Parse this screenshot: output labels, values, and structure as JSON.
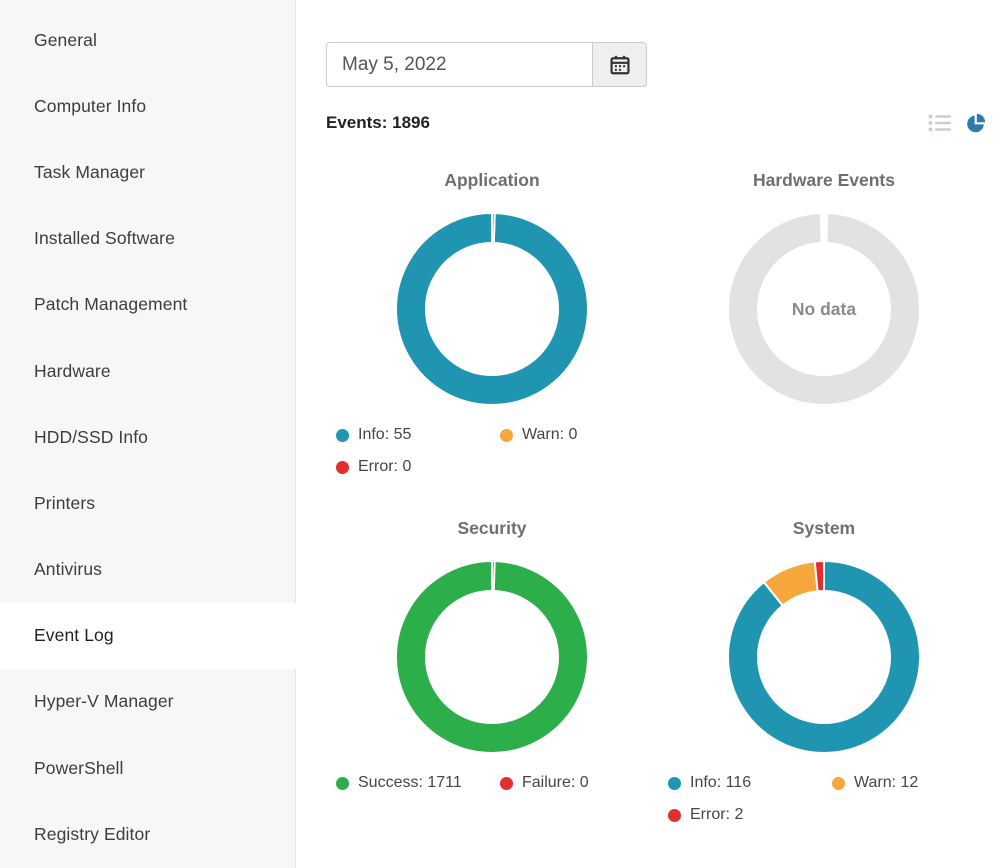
{
  "sidebar": {
    "items": [
      {
        "label": "General",
        "selected": false
      },
      {
        "label": "Computer Info",
        "selected": false
      },
      {
        "label": "Task Manager",
        "selected": false
      },
      {
        "label": "Installed Software",
        "selected": false
      },
      {
        "label": "Patch Management",
        "selected": false
      },
      {
        "label": "Hardware",
        "selected": false
      },
      {
        "label": "HDD/SSD Info",
        "selected": false
      },
      {
        "label": "Printers",
        "selected": false
      },
      {
        "label": "Antivirus",
        "selected": false
      },
      {
        "label": "Event Log",
        "selected": true
      },
      {
        "label": "Hyper-V Manager",
        "selected": false
      },
      {
        "label": "PowerShell",
        "selected": false
      },
      {
        "label": "Registry Editor",
        "selected": false
      }
    ]
  },
  "toolbar": {
    "date_value": "May 5, 2022",
    "events_label": "Events: 1896"
  },
  "icons": {
    "calendar": "calendar-icon",
    "list_view": "list-view-icon",
    "pie_view": "pie-view-icon"
  },
  "colors": {
    "info": "#2095b1",
    "warn": "#f6a73c",
    "error": "#e12f2f",
    "success": "#2cae4a",
    "no_data_ring": "#e2e2e2",
    "pie_view_icon": "#2b7bab",
    "list_view_icon": "#c9ced3",
    "sidebar_bg": "#f7f7f7"
  },
  "chart_data": [
    {
      "type": "pie",
      "title": "Application",
      "labels": [
        "Info",
        "Warn",
        "Error"
      ],
      "values": [
        55,
        0,
        0
      ],
      "colors": [
        "#2095b1",
        "#f6a73c",
        "#e12f2f"
      ],
      "legend": [
        {
          "label": "Info: 55",
          "color": "#2095b1"
        },
        {
          "label": "Warn: 0",
          "color": "#f6a73c"
        },
        {
          "label": "Error: 0",
          "color": "#e12f2f"
        }
      ]
    },
    {
      "type": "pie",
      "title": "Hardware Events",
      "labels": [],
      "values": [],
      "colors": [],
      "no_data_label": "No data",
      "legend": []
    },
    {
      "type": "pie",
      "title": "Security",
      "labels": [
        "Success",
        "Failure"
      ],
      "values": [
        1711,
        0
      ],
      "colors": [
        "#2cae4a",
        "#e12f2f"
      ],
      "legend": [
        {
          "label": "Success: 1711",
          "color": "#2cae4a"
        },
        {
          "label": "Failure: 0",
          "color": "#e12f2f"
        }
      ]
    },
    {
      "type": "pie",
      "title": "System",
      "labels": [
        "Info",
        "Warn",
        "Error"
      ],
      "values": [
        116,
        12,
        2
      ],
      "colors": [
        "#2095b1",
        "#f6a73c",
        "#e12f2f"
      ],
      "legend": [
        {
          "label": "Info: 116",
          "color": "#2095b1"
        },
        {
          "label": "Warn: 12",
          "color": "#f6a73c"
        },
        {
          "label": "Error: 2",
          "color": "#e12f2f"
        }
      ]
    }
  ]
}
